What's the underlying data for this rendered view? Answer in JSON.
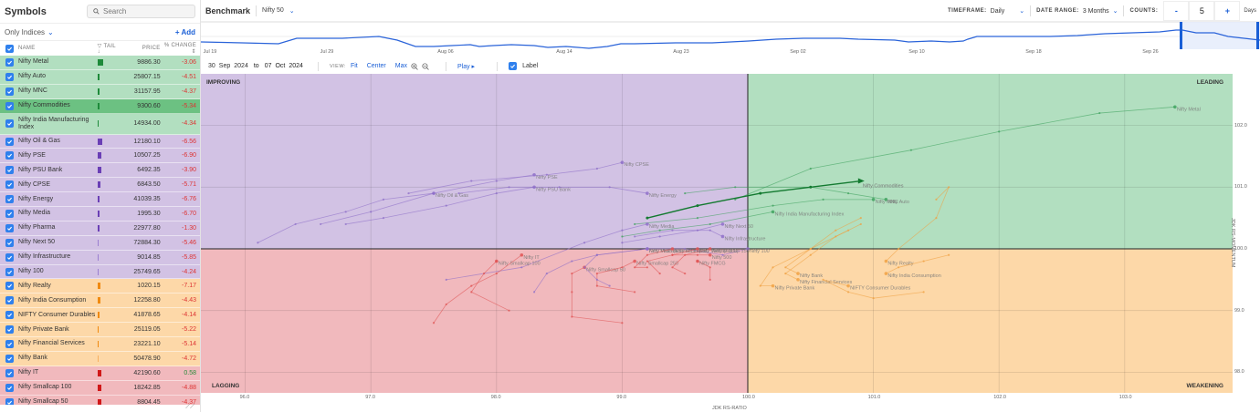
{
  "sidebar": {
    "title": "Symbols",
    "search_placeholder": "Search",
    "filter_label": "Only Indices",
    "add_label": "+ Add",
    "columns": {
      "name": "NAME",
      "tail": "TAIL",
      "price": "PRICE",
      "change": "% CHANGE"
    },
    "rows": [
      {
        "name": "Nifty Metal",
        "price": "9886.30",
        "change": "-3.06",
        "bg": "green",
        "tail_color": "#1e8a3a",
        "tail_w": 6
      },
      {
        "name": "Nifty Auto",
        "price": "25807.15",
        "change": "-4.51",
        "bg": "green",
        "tail_color": "#1e8a3a",
        "tail_w": 2
      },
      {
        "name": "Nifty MNC",
        "price": "31157.95",
        "change": "-4.37",
        "bg": "green",
        "tail_color": "#1e8a3a",
        "tail_w": 2
      },
      {
        "name": "Nifty Commodities",
        "price": "9300.60",
        "change": "-5.34",
        "bg": "green-sel",
        "tail_color": "#1e8a3a",
        "tail_w": 2
      },
      {
        "name": "Nifty India Manufacturing Index",
        "price": "14934.00",
        "change": "-4.34",
        "bg": "green",
        "tail_color": "#1e8a3a",
        "tail_w": 1,
        "tall": true
      },
      {
        "name": "Nifty Oil & Gas",
        "price": "12180.10",
        "change": "-6.56",
        "bg": "purple",
        "tail_color": "#6a3fb5",
        "tail_w": 5
      },
      {
        "name": "Nifty PSE",
        "price": "10507.25",
        "change": "-6.90",
        "bg": "purple",
        "tail_color": "#6a3fb5",
        "tail_w": 4
      },
      {
        "name": "Nifty PSU Bank",
        "price": "6492.35",
        "change": "-3.90",
        "bg": "purple",
        "tail_color": "#6a3fb5",
        "tail_w": 4
      },
      {
        "name": "Nifty CPSE",
        "price": "6843.50",
        "change": "-5.71",
        "bg": "purple",
        "tail_color": "#6a3fb5",
        "tail_w": 3
      },
      {
        "name": "Nifty Energy",
        "price": "41039.35",
        "change": "-6.76",
        "bg": "purple",
        "tail_color": "#6a3fb5",
        "tail_w": 2
      },
      {
        "name": "Nifty Media",
        "price": "1995.30",
        "change": "-6.70",
        "bg": "purple",
        "tail_color": "#6a3fb5",
        "tail_w": 2
      },
      {
        "name": "Nifty Pharma",
        "price": "22977.80",
        "change": "-1.30",
        "bg": "purple",
        "tail_color": "#6a3fb5",
        "tail_w": 2
      },
      {
        "name": "Nifty Next 50",
        "price": "72884.30",
        "change": "-5.46",
        "bg": "purple",
        "tail_color": "#9b7fd0",
        "tail_w": 1
      },
      {
        "name": "Nifty Infrastructure",
        "price": "9014.85",
        "change": "-5.85",
        "bg": "purple",
        "tail_color": "#9b7fd0",
        "tail_w": 1
      },
      {
        "name": "Nifty 100",
        "price": "25749.65",
        "change": "-4.24",
        "bg": "purple",
        "tail_color": "#9b7fd0",
        "tail_w": 1
      },
      {
        "name": "Nifty Realty",
        "price": "1020.15",
        "change": "-7.17",
        "bg": "orange",
        "tail_color": "#f08a10",
        "tail_w": 3
      },
      {
        "name": "Nifty India Consumption",
        "price": "12258.80",
        "change": "-4.43",
        "bg": "orange",
        "tail_color": "#f08a10",
        "tail_w": 3
      },
      {
        "name": "NIFTY Consumer Durables",
        "price": "41878.65",
        "change": "-4.14",
        "bg": "orange",
        "tail_color": "#f08a10",
        "tail_w": 2
      },
      {
        "name": "Nifty Private Bank",
        "price": "25119.05",
        "change": "-5.22",
        "bg": "orange",
        "tail_color": "#f08a10",
        "tail_w": 1
      },
      {
        "name": "Nifty Financial Services",
        "price": "23221.10",
        "change": "-5.14",
        "bg": "orange",
        "tail_color": "#f08a10",
        "tail_w": 1
      },
      {
        "name": "Nifty Bank",
        "price": "50478.90",
        "change": "-4.72",
        "bg": "orange",
        "tail_color": "#f7b060",
        "tail_w": 1
      },
      {
        "name": "Nifty IT",
        "price": "42190.60",
        "change": "0.58",
        "bg": "red",
        "tail_color": "#d01818",
        "tail_w": 4
      },
      {
        "name": "Nifty Smallcap 100",
        "price": "18242.85",
        "change": "-4.88",
        "bg": "red",
        "tail_color": "#d01818",
        "tail_w": 4
      },
      {
        "name": "Nifty Smallcap 50",
        "price": "8804.45",
        "change": "-4.37",
        "bg": "red",
        "tail_color": "#d01818",
        "tail_w": 4
      }
    ]
  },
  "topbar": {
    "benchmark_label": "Benchmark",
    "benchmark_value": "Nifty 50",
    "timeframe_label": "TIMEFRAME:",
    "timeframe_value": "Daily",
    "date_range_label": "DATE RANGE:",
    "date_range_value": "3 Months",
    "counts_label": "COUNTS:",
    "counts_minus": "-",
    "counts_value": "5",
    "counts_plus": "+",
    "counts_unit": "Days"
  },
  "sparkline": {
    "dates": [
      "Jul 19",
      "Jul 29",
      "Aug 06",
      "Aug 14",
      "Aug 23",
      "Sep 02",
      "Sep 10",
      "Sep 18",
      "Sep 26"
    ]
  },
  "controls": {
    "date_from": {
      "day": "30",
      "month": "Sep",
      "year": "2024"
    },
    "to_label": "to",
    "date_to": {
      "day": "07",
      "month": "Oct",
      "year": "2024"
    },
    "view_label": "VIEW:",
    "fit_label": "Fit",
    "center_label": "Center",
    "max_label": "Max",
    "play_label": "Play ▸",
    "label_toggle": "Label"
  },
  "chart": {
    "quadrants": {
      "improving": "IMPROVING",
      "leading": "LEADING",
      "lagging": "LAGGING",
      "weakening": "WEAKENING"
    },
    "x_axis_title": "JDK RS-RATIO",
    "y_axis_title": "JDK RS-MOMENTUM",
    "x_ticks": [
      "96.0",
      "97.0",
      "98.0",
      "99.0",
      "100.0",
      "101.0",
      "102.0",
      "103.0"
    ],
    "y_ticks": [
      "102.0",
      "101.0",
      "100.0",
      "99.0",
      "98.0"
    ],
    "colors": {
      "leading": "#b2dfc0",
      "improving": "#d2c2e4",
      "lagging": "#f1b9bd",
      "weakening": "#fdd8a8"
    },
    "series_labels": [
      "Nifty Metal",
      "Nifty Commodities",
      "Nifty Auto",
      "Nifty MNC",
      "Nifty India Manufacturing Index",
      "Nifty Oil & Gas",
      "Nifty PSE",
      "Nifty PSU Bank",
      "Nifty CPSE",
      "Nifty Energy",
      "Nifty Media",
      "Nifty Next 50",
      "Nifty Infrastructure",
      "Nifty Pharma",
      "Nifty 100",
      "Nifty Realty",
      "Nifty India Consumption",
      "Nifty Bank",
      "Nifty Financial Services",
      "Nifty Private Bank",
      "NIFTY Consumer Durables",
      "Nifty IT",
      "Nifty Smallcap 100",
      "Nifty Smallcap 50",
      "Nifty Smallcap 250",
      "Nifty Midcap Select Index",
      "Nifty Midcap 50",
      "Nifty Midcap 150",
      "Nifty Midcap 100",
      "Nifty FMCG",
      "Nifty 500"
    ]
  }
}
